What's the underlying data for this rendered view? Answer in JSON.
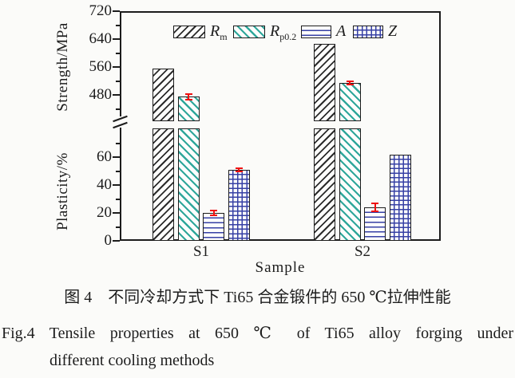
{
  "figure": {
    "strength_axis_title": "Strength/MPa",
    "plasticity_axis_title": "Plasticity/%",
    "xlabel": "Sample",
    "legend": [
      {
        "base": "R",
        "sub": "m"
      },
      {
        "base": "R",
        "sub": "p0.2"
      },
      {
        "base": "A",
        "sub": ""
      },
      {
        "base": "Z",
        "sub": ""
      }
    ]
  },
  "chart_data": {
    "type": "bar",
    "title": "Tensile properties at 650 C of Ti65 alloy forging (broken-axis grouped bars)",
    "categories": [
      "S1",
      "S2"
    ],
    "xlabel": "Sample",
    "broken_axis": true,
    "top_axis": {
      "label": "Strength/MPa",
      "major_ticks": [
        720,
        640,
        560,
        480
      ],
      "minor_ticks": [
        680,
        600,
        520,
        440
      ],
      "range_shown": [
        440,
        720
      ]
    },
    "bottom_axis": {
      "label": "Plasticity/%",
      "major_ticks": [
        60,
        40,
        20,
        0
      ],
      "minor_ticks": [
        70,
        50,
        30,
        10
      ],
      "range_shown": [
        0,
        70
      ]
    },
    "legend_position": "top-inside",
    "grid": false,
    "series": [
      {
        "name": "Rm",
        "axis": "strength",
        "unit": "MPa",
        "values": [
          555,
          627
        ],
        "errors": [
          0,
          0
        ]
      },
      {
        "name": "Rp0.2",
        "axis": "strength",
        "unit": "MPa",
        "values": [
          475,
          515
        ],
        "errors": [
          8,
          3
        ]
      },
      {
        "name": "A",
        "axis": "plasticity",
        "unit": "%",
        "values": [
          20,
          24
        ],
        "errors": [
          1.5,
          3
        ]
      },
      {
        "name": "Z",
        "axis": "plasticity",
        "unit": "%",
        "values": [
          51,
          62
        ],
        "errors": [
          1,
          0
        ]
      }
    ],
    "colors": {
      "hatch_black": "#2b2b2b",
      "hatch_teal": "#2fa79b",
      "hatch_blue": "#3640a5",
      "error_bar_red": "#ee1111",
      "outline": "#1c1c1c"
    }
  },
  "caption": {
    "zh": "图 4　不同冷却方式下 Ti65 合金锻件的 650 ℃拉伸性能",
    "en_line1": "Fig.4 Tensile properties at 650 ℃ of Ti65 alloy forging under",
    "en_line2": "different cooling methods"
  }
}
